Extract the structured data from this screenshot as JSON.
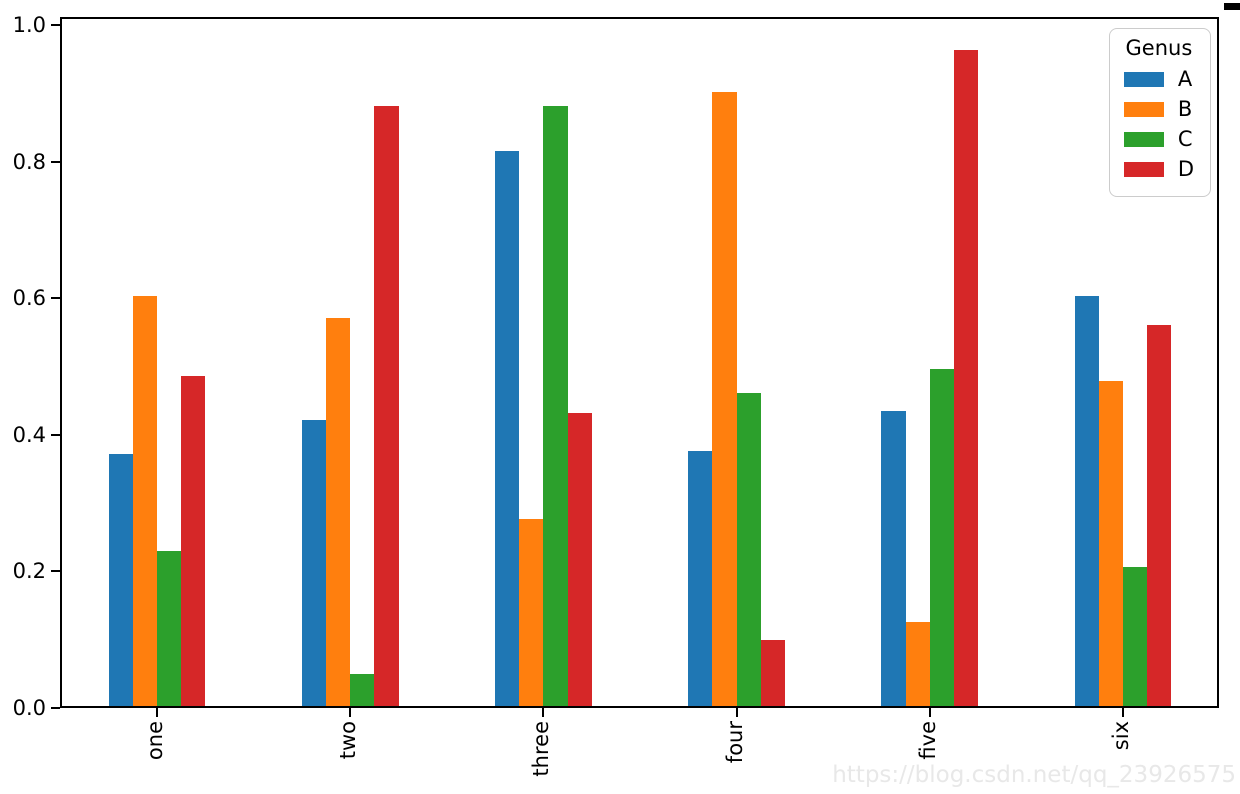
{
  "chart_data": {
    "type": "bar",
    "title": "",
    "xlabel": "",
    "ylabel": "",
    "categories": [
      "one",
      "two",
      "three",
      "four",
      "five",
      "six"
    ],
    "series": [
      {
        "name": "A",
        "color": "#1f77b4",
        "values": [
          0.37,
          0.42,
          0.815,
          0.375,
          0.433,
          0.602
        ]
      },
      {
        "name": "B",
        "color": "#ff7f0e",
        "values": [
          0.602,
          0.57,
          0.275,
          0.9,
          0.125,
          0.478
        ]
      },
      {
        "name": "C",
        "color": "#2ca02c",
        "values": [
          0.228,
          0.048,
          0.88,
          0.46,
          0.495,
          0.205
        ]
      },
      {
        "name": "D",
        "color": "#d62728",
        "values": [
          0.485,
          0.88,
          0.43,
          0.098,
          0.962,
          0.56
        ]
      }
    ],
    "legend": {
      "title": "Genus",
      "position": "upper right"
    },
    "y_ticks": [
      0.0,
      0.2,
      0.4,
      0.6,
      0.8,
      1.0
    ],
    "y_tick_labels": [
      "0.0",
      "0.2",
      "0.4",
      "0.6",
      "0.8",
      "1.0"
    ],
    "ylim": [
      0,
      1.012
    ],
    "grid": false,
    "bar_group_width_fraction": 0.5,
    "x_tick_label_rotation": 90
  },
  "watermark": "https://blog.csdn.net/qq_23926575",
  "colors": {
    "background": "#ffffff",
    "axis": "#000000",
    "legend_border": "#cccccc",
    "watermark_text": "#e8e8e8"
  }
}
